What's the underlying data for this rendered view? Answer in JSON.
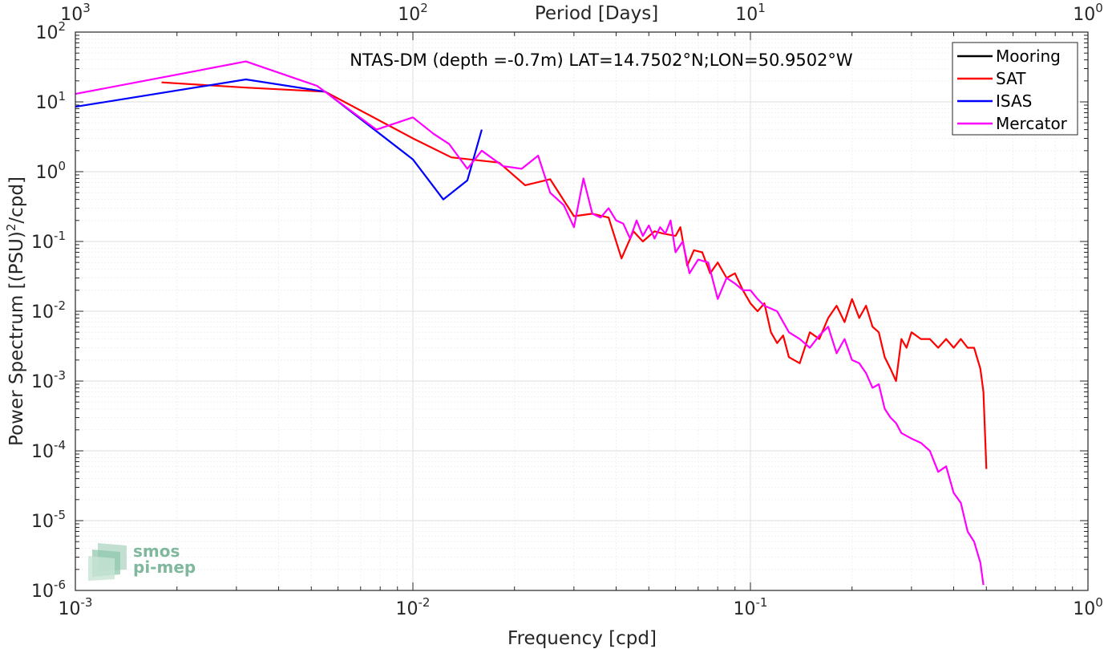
{
  "chart_data": {
    "type": "line",
    "title": "NTAS-DM (depth =-0.7m) LAT=14.7502°N;LON=50.9502°W",
    "xlabel": "Frequency [cpd]",
    "ylabel": "Power Spectrum [(PSU)",
    "ylabel_sup": "2",
    "ylabel_tail": "/cpd]",
    "top_xlabel": "Period [Days]",
    "x_scale": "log",
    "y_scale": "log",
    "xlim": [
      0.001,
      1
    ],
    "ylim": [
      1e-06,
      100
    ],
    "grid": true,
    "legend_position": "top-right",
    "x_ticks": [
      {
        "value": 0.001,
        "base": "10",
        "exp": "-3"
      },
      {
        "value": 0.01,
        "base": "10",
        "exp": "-2"
      },
      {
        "value": 0.1,
        "base": "10",
        "exp": "-1"
      },
      {
        "value": 1,
        "base": "10",
        "exp": "0"
      }
    ],
    "y_ticks": [
      {
        "value": 1e-06,
        "base": "10",
        "exp": "-6"
      },
      {
        "value": 1e-05,
        "base": "10",
        "exp": "-5"
      },
      {
        "value": 0.0001,
        "base": "10",
        "exp": "-4"
      },
      {
        "value": 0.001,
        "base": "10",
        "exp": "-3"
      },
      {
        "value": 0.01,
        "base": "10",
        "exp": "-2"
      },
      {
        "value": 0.1,
        "base": "10",
        "exp": "-1"
      },
      {
        "value": 1,
        "base": "10",
        "exp": "0"
      },
      {
        "value": 10,
        "base": "10",
        "exp": "1"
      },
      {
        "value": 100,
        "base": "10",
        "exp": "2"
      }
    ],
    "top_x_ticks": [
      {
        "value": 0.001,
        "base": "10",
        "exp": "3"
      },
      {
        "value": 0.01,
        "base": "10",
        "exp": "2"
      },
      {
        "value": 0.1,
        "base": "10",
        "exp": "1"
      },
      {
        "value": 1,
        "base": "10",
        "exp": "0"
      }
    ],
    "series": [
      {
        "name": "Mooring",
        "color": "#000000",
        "x": [],
        "y": []
      },
      {
        "name": "SAT",
        "color": "#ff0000",
        "x": [
          0.0018,
          0.0032,
          0.0055,
          0.01,
          0.013,
          0.018,
          0.0215,
          0.0255,
          0.03,
          0.034,
          0.038,
          0.0415,
          0.045,
          0.048,
          0.052,
          0.055,
          0.06,
          0.062,
          0.065,
          0.068,
          0.072,
          0.076,
          0.08,
          0.085,
          0.09,
          0.095,
          0.1,
          0.105,
          0.11,
          0.115,
          0.12,
          0.125,
          0.13,
          0.14,
          0.15,
          0.16,
          0.17,
          0.18,
          0.19,
          0.2,
          0.21,
          0.22,
          0.23,
          0.24,
          0.25,
          0.26,
          0.27,
          0.28,
          0.29,
          0.3,
          0.32,
          0.34,
          0.36,
          0.38,
          0.4,
          0.42,
          0.44,
          0.46,
          0.48,
          0.49,
          0.5
        ],
        "y": [
          19,
          16,
          14,
          3,
          1.6,
          1.35,
          0.64,
          0.78,
          0.23,
          0.25,
          0.22,
          0.057,
          0.14,
          0.1,
          0.14,
          0.13,
          0.12,
          0.16,
          0.045,
          0.075,
          0.07,
          0.035,
          0.05,
          0.03,
          0.035,
          0.02,
          0.013,
          0.01,
          0.013,
          0.005,
          0.0035,
          0.0045,
          0.0022,
          0.0018,
          0.005,
          0.004,
          0.008,
          0.012,
          0.007,
          0.015,
          0.008,
          0.012,
          0.006,
          0.005,
          0.0022,
          0.0015,
          0.001,
          0.004,
          0.003,
          0.005,
          0.004,
          0.004,
          0.003,
          0.004,
          0.003,
          0.004,
          0.003,
          0.003,
          0.0015,
          0.0007,
          5.5e-05
        ]
      },
      {
        "name": "ISAS",
        "color": "#0000ff",
        "x": [
          0.001,
          0.0032,
          0.0055,
          0.01,
          0.0123,
          0.0145,
          0.016
        ],
        "y": [
          8.5,
          21,
          14,
          1.5,
          0.4,
          0.75,
          4
        ]
      },
      {
        "name": "Mercator",
        "color": "#ff00ff",
        "x": [
          0.001,
          0.0032,
          0.0052,
          0.0078,
          0.01,
          0.0115,
          0.0128,
          0.0145,
          0.016,
          0.0185,
          0.021,
          0.0235,
          0.0255,
          0.028,
          0.03,
          0.032,
          0.034,
          0.036,
          0.038,
          0.04,
          0.042,
          0.044,
          0.046,
          0.048,
          0.05,
          0.052,
          0.054,
          0.056,
          0.058,
          0.06,
          0.063,
          0.066,
          0.07,
          0.075,
          0.08,
          0.085,
          0.09,
          0.095,
          0.1,
          0.105,
          0.11,
          0.12,
          0.13,
          0.14,
          0.15,
          0.16,
          0.17,
          0.18,
          0.19,
          0.2,
          0.21,
          0.22,
          0.23,
          0.24,
          0.25,
          0.26,
          0.27,
          0.28,
          0.3,
          0.32,
          0.34,
          0.36,
          0.38,
          0.4,
          0.42,
          0.44,
          0.46,
          0.48,
          0.49
        ],
        "y": [
          13,
          38,
          17,
          4,
          6,
          3.5,
          2.5,
          1.1,
          2,
          1.2,
          1.1,
          1.7,
          0.5,
          0.33,
          0.16,
          0.8,
          0.25,
          0.22,
          0.3,
          0.2,
          0.18,
          0.11,
          0.2,
          0.12,
          0.17,
          0.11,
          0.16,
          0.13,
          0.2,
          0.07,
          0.1,
          0.035,
          0.055,
          0.05,
          0.015,
          0.03,
          0.025,
          0.02,
          0.02,
          0.015,
          0.012,
          0.01,
          0.005,
          0.004,
          0.003,
          0.0045,
          0.006,
          0.0025,
          0.004,
          0.002,
          0.0018,
          0.0013,
          0.0008,
          0.0009,
          0.0004,
          0.0003,
          0.00025,
          0.00018,
          0.00015,
          0.00013,
          0.0001,
          5e-05,
          6e-05,
          2.5e-05,
          1.8e-05,
          7e-06,
          5e-06,
          2.5e-06,
          1.2e-06
        ]
      }
    ]
  },
  "logo": {
    "line1": "smos",
    "line2": "pi-mep"
  }
}
